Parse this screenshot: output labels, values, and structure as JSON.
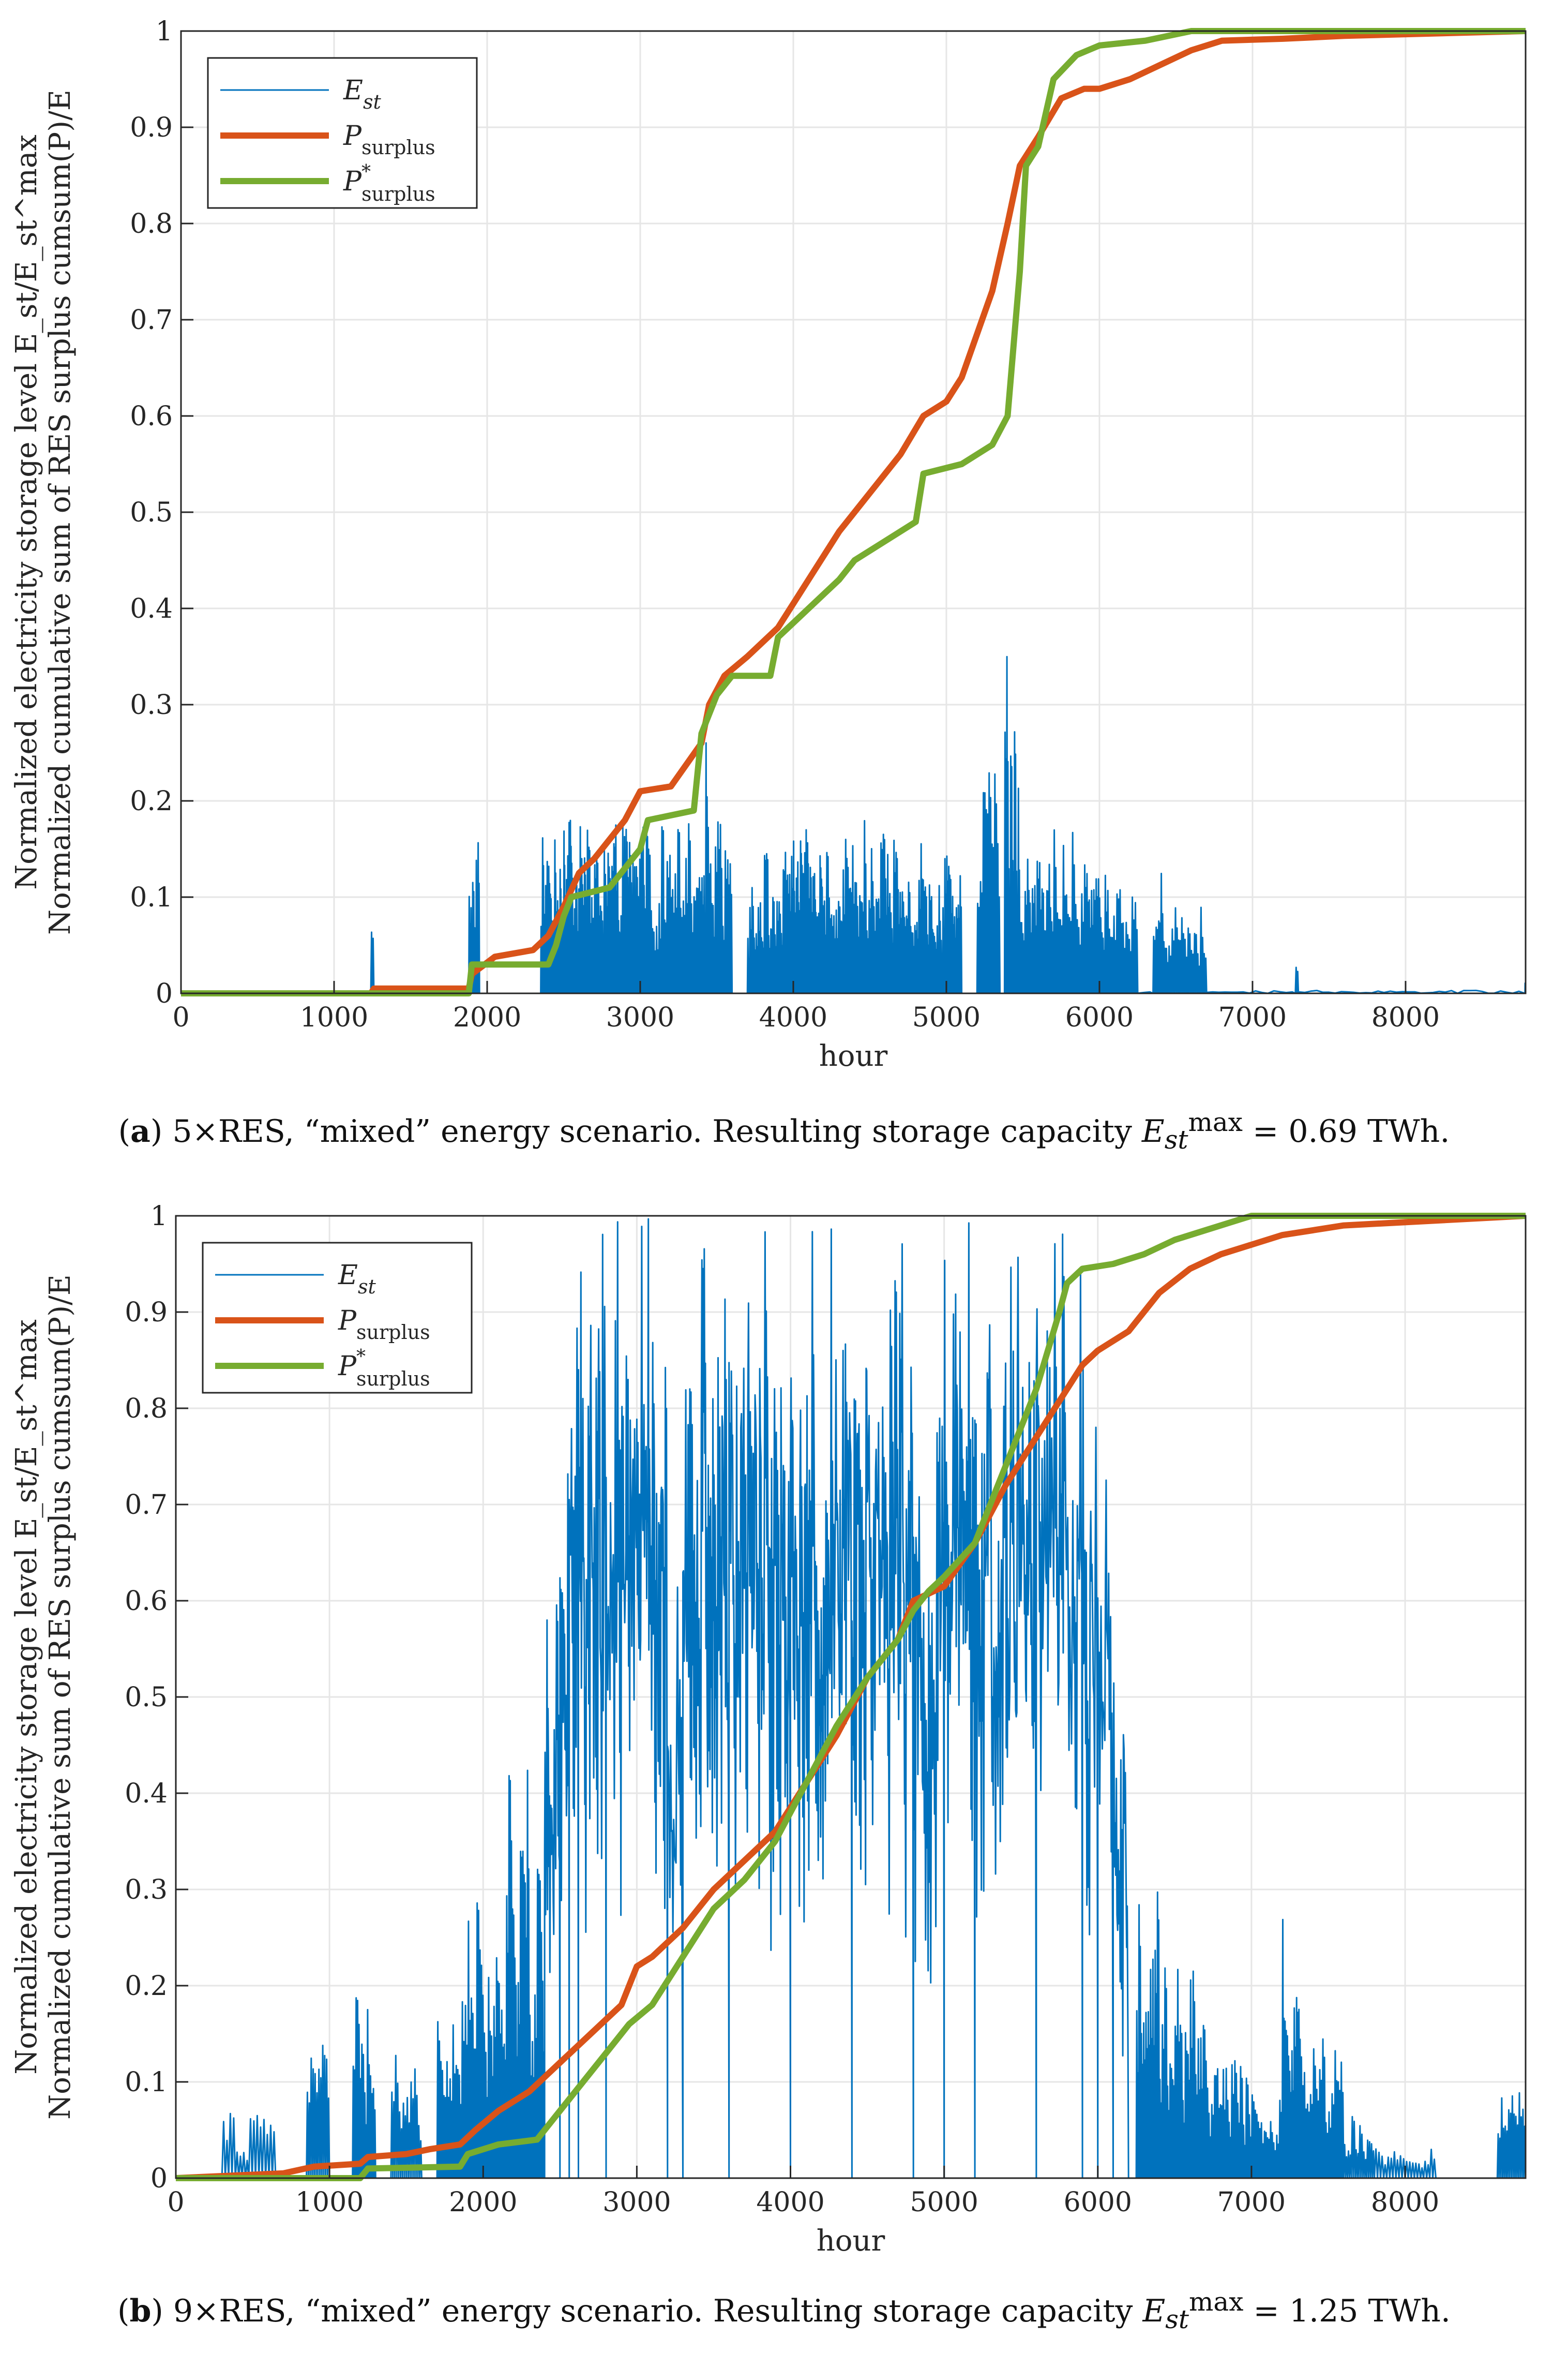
{
  "colors": {
    "E_st": "#0072BD",
    "P_surplus": "#D95319",
    "P_surplus_star": "#77AC30",
    "grid": "#e6e6e6",
    "axis": "#262626"
  },
  "chart_data": [
    {
      "type": "line",
      "xlabel": "hour",
      "ylabel_line1": "Normalized electricity storage level E_st/E_st^max",
      "ylabel_line2": "Normalized cumulative sum of RES surplus cumsum(P)/E",
      "xlim": [
        0,
        8784
      ],
      "ylim": [
        0,
        1
      ],
      "xticks": [
        "0",
        "1000",
        "2000",
        "3000",
        "4000",
        "5000",
        "6000",
        "7000",
        "8000"
      ],
      "yticks": [
        "0",
        "0.1",
        "0.2",
        "0.3",
        "0.4",
        "0.5",
        "0.6",
        "0.7",
        "0.8",
        "0.9",
        "1"
      ],
      "grid": true,
      "legend_position": "top-left",
      "series": [
        {
          "name": "E_st",
          "style": "spiky",
          "y_baseline_noise": 0.003,
          "segments": [
            [
              1240,
              1260,
              0.078,
              1
            ],
            [
              1880,
              1950,
              0.175,
              6
            ],
            [
              2350,
              2450,
              0.175,
              10
            ],
            [
              2450,
              2550,
              0.18,
              12
            ],
            [
              2550,
              2700,
              0.175,
              16
            ],
            [
              2700,
              2850,
              0.175,
              12
            ],
            [
              2850,
              3050,
              0.18,
              18
            ],
            [
              3050,
              3400,
              0.18,
              20
            ],
            [
              3400,
              3440,
              0.29,
              3
            ],
            [
              3440,
              3600,
              0.18,
              10
            ],
            [
              3700,
              4000,
              0.15,
              22
            ],
            [
              4000,
              4200,
              0.17,
              22
            ],
            [
              4200,
              4600,
              0.18,
              26
            ],
            [
              4600,
              4900,
              0.16,
              22
            ],
            [
              4900,
              5100,
              0.15,
              16
            ],
            [
              5200,
              5350,
              0.23,
              8
            ],
            [
              5380,
              5480,
              0.35,
              8
            ],
            [
              5480,
              5700,
              0.17,
              14
            ],
            [
              5700,
              5900,
              0.17,
              10
            ],
            [
              5900,
              6050,
              0.14,
              10
            ],
            [
              6050,
              6250,
              0.11,
              10
            ],
            [
              6350,
              6450,
              0.13,
              6
            ],
            [
              6450,
              6700,
              0.09,
              12
            ],
            [
              7280,
              7300,
              0.07,
              1
            ],
            [
              8780,
              8784,
              0.015,
              1
            ]
          ]
        },
        {
          "name": "P_surplus",
          "points": [
            [
              0,
              0
            ],
            [
              1240,
              0
            ],
            [
              1260,
              0.005
            ],
            [
              1880,
              0.005
            ],
            [
              1900,
              0.02
            ],
            [
              2050,
              0.038
            ],
            [
              2300,
              0.045
            ],
            [
              2400,
              0.06
            ],
            [
              2500,
              0.09
            ],
            [
              2600,
              0.125
            ],
            [
              2700,
              0.14
            ],
            [
              2900,
              0.18
            ],
            [
              3000,
              0.21
            ],
            [
              3200,
              0.215
            ],
            [
              3400,
              0.26
            ],
            [
              3450,
              0.3
            ],
            [
              3550,
              0.33
            ],
            [
              3700,
              0.35
            ],
            [
              3900,
              0.38
            ],
            [
              4100,
              0.43
            ],
            [
              4300,
              0.48
            ],
            [
              4500,
              0.52
            ],
            [
              4700,
              0.56
            ],
            [
              4850,
              0.6
            ],
            [
              5000,
              0.615
            ],
            [
              5100,
              0.64
            ],
            [
              5300,
              0.73
            ],
            [
              5400,
              0.8
            ],
            [
              5480,
              0.86
            ],
            [
              5600,
              0.89
            ],
            [
              5750,
              0.93
            ],
            [
              5900,
              0.94
            ],
            [
              6000,
              0.94
            ],
            [
              6200,
              0.95
            ],
            [
              6400,
              0.965
            ],
            [
              6600,
              0.98
            ],
            [
              6800,
              0.99
            ],
            [
              7200,
              0.992
            ],
            [
              7600,
              0.995
            ],
            [
              8784,
              1.0
            ]
          ]
        },
        {
          "name": "P_surplus_star",
          "points": [
            [
              0,
              0
            ],
            [
              1880,
              0
            ],
            [
              1900,
              0.03
            ],
            [
              2400,
              0.03
            ],
            [
              2450,
              0.05
            ],
            [
              2500,
              0.08
            ],
            [
              2550,
              0.1
            ],
            [
              2800,
              0.11
            ],
            [
              2900,
              0.13
            ],
            [
              3000,
              0.15
            ],
            [
              3050,
              0.18
            ],
            [
              3350,
              0.19
            ],
            [
              3400,
              0.27
            ],
            [
              3500,
              0.31
            ],
            [
              3600,
              0.33
            ],
            [
              3850,
              0.33
            ],
            [
              3900,
              0.37
            ],
            [
              4100,
              0.4
            ],
            [
              4300,
              0.43
            ],
            [
              4400,
              0.45
            ],
            [
              4600,
              0.47
            ],
            [
              4800,
              0.49
            ],
            [
              4850,
              0.54
            ],
            [
              5100,
              0.55
            ],
            [
              5300,
              0.57
            ],
            [
              5400,
              0.6
            ],
            [
              5480,
              0.75
            ],
            [
              5520,
              0.86
            ],
            [
              5600,
              0.88
            ],
            [
              5700,
              0.95
            ],
            [
              5850,
              0.975
            ],
            [
              6000,
              0.985
            ],
            [
              6300,
              0.99
            ],
            [
              6600,
              1.0
            ],
            [
              8784,
              1.0
            ]
          ]
        }
      ]
    },
    {
      "type": "line",
      "xlabel": "hour",
      "ylabel_line1": "Normalized electricity storage level E_st/E_st^max",
      "ylabel_line2": "Normalized cumulative sum of RES surplus cumsum(P)/E",
      "xlim": [
        0,
        8784
      ],
      "ylim": [
        0,
        1
      ],
      "xticks": [
        "0",
        "1000",
        "2000",
        "3000",
        "4000",
        "5000",
        "6000",
        "7000",
        "8000"
      ],
      "yticks": [
        "0",
        "0.1",
        "0.2",
        "0.3",
        "0.4",
        "0.5",
        "0.6",
        "0.7",
        "0.8",
        "0.9",
        "1"
      ],
      "grid": true,
      "legend_position": "top-left",
      "series": [
        {
          "name": "E_st",
          "style": "spiky",
          "y_baseline_noise": 0.003,
          "segments": [
            [
              300,
              650,
              0.07,
              8
            ],
            [
              850,
              1000,
              0.17,
              6
            ],
            [
              1150,
              1300,
              0.19,
              8
            ],
            [
              1400,
              1600,
              0.13,
              8
            ],
            [
              1700,
              1900,
              0.2,
              10
            ],
            [
              1900,
              2050,
              0.31,
              8
            ],
            [
              2050,
              2150,
              0.28,
              6
            ],
            [
              2150,
              2300,
              0.44,
              10
            ],
            [
              2300,
              2400,
              0.37,
              6
            ],
            [
              2400,
              2500,
              0.6,
              8
            ],
            [
              2500,
              2560,
              0.75,
              5
            ],
            [
              2560,
              2620,
              1.0,
              5
            ],
            [
              2620,
              2800,
              1.0,
              14
            ],
            [
              2800,
              3200,
              1.0,
              28
            ],
            [
              3200,
              3300,
              0.62,
              5
            ],
            [
              3300,
              3600,
              1.0,
              20
            ],
            [
              3600,
              4000,
              1.0,
              26
            ],
            [
              4000,
              4400,
              1.0,
              26
            ],
            [
              4400,
              4800,
              1.0,
              26
            ],
            [
              4800,
              5000,
              0.8,
              12
            ],
            [
              5000,
              5200,
              1.0,
              14
            ],
            [
              5200,
              5600,
              1.0,
              26
            ],
            [
              5600,
              5900,
              1.0,
              18
            ],
            [
              5900,
              6000,
              0.85,
              6
            ],
            [
              6000,
              6100,
              0.74,
              6
            ],
            [
              6100,
              6200,
              0.55,
              6
            ],
            [
              6250,
              6400,
              0.3,
              10
            ],
            [
              6400,
              6700,
              0.22,
              18
            ],
            [
              6700,
              7000,
              0.13,
              16
            ],
            [
              7000,
              7200,
              0.1,
              10
            ],
            [
              7200,
              7320,
              0.3,
              8
            ],
            [
              7320,
              7600,
              0.15,
              14
            ],
            [
              7600,
              7800,
              0.07,
              8
            ],
            [
              7800,
              8200,
              0.035,
              10
            ],
            [
              8600,
              8784,
              0.09,
              8
            ]
          ]
        },
        {
          "name": "P_surplus",
          "points": [
            [
              0,
              0
            ],
            [
              700,
              0.005
            ],
            [
              900,
              0.012
            ],
            [
              1200,
              0.015
            ],
            [
              1250,
              0.022
            ],
            [
              1500,
              0.025
            ],
            [
              1650,
              0.03
            ],
            [
              1850,
              0.035
            ],
            [
              1950,
              0.05
            ],
            [
              2100,
              0.07
            ],
            [
              2300,
              0.09
            ],
            [
              2500,
              0.12
            ],
            [
              2700,
              0.15
            ],
            [
              2900,
              0.18
            ],
            [
              3000,
              0.22
            ],
            [
              3100,
              0.23
            ],
            [
              3300,
              0.26
            ],
            [
              3500,
              0.3
            ],
            [
              3700,
              0.33
            ],
            [
              3900,
              0.36
            ],
            [
              4100,
              0.41
            ],
            [
              4300,
              0.46
            ],
            [
              4500,
              0.52
            ],
            [
              4700,
              0.56
            ],
            [
              4800,
              0.6
            ],
            [
              5000,
              0.615
            ],
            [
              5200,
              0.66
            ],
            [
              5400,
              0.72
            ],
            [
              5600,
              0.77
            ],
            [
              5800,
              0.82
            ],
            [
              5900,
              0.845
            ],
            [
              6000,
              0.86
            ],
            [
              6200,
              0.88
            ],
            [
              6400,
              0.92
            ],
            [
              6600,
              0.945
            ],
            [
              6800,
              0.96
            ],
            [
              7000,
              0.97
            ],
            [
              7200,
              0.98
            ],
            [
              7400,
              0.985
            ],
            [
              7600,
              0.99
            ],
            [
              8784,
              1.0
            ]
          ]
        },
        {
          "name": "P_surplus_star",
          "points": [
            [
              0,
              0
            ],
            [
              1200,
              0
            ],
            [
              1250,
              0.01
            ],
            [
              1850,
              0.012
            ],
            [
              1900,
              0.025
            ],
            [
              2100,
              0.035
            ],
            [
              2350,
              0.04
            ],
            [
              2450,
              0.06
            ],
            [
              2600,
              0.09
            ],
            [
              2800,
              0.13
            ],
            [
              2950,
              0.16
            ],
            [
              3100,
              0.18
            ],
            [
              3300,
              0.23
            ],
            [
              3500,
              0.28
            ],
            [
              3700,
              0.31
            ],
            [
              3900,
              0.35
            ],
            [
              4100,
              0.41
            ],
            [
              4300,
              0.47
            ],
            [
              4500,
              0.52
            ],
            [
              4700,
              0.56
            ],
            [
              4800,
              0.59
            ],
            [
              4900,
              0.61
            ],
            [
              5000,
              0.625
            ],
            [
              5200,
              0.66
            ],
            [
              5400,
              0.74
            ],
            [
              5600,
              0.82
            ],
            [
              5750,
              0.9
            ],
            [
              5800,
              0.93
            ],
            [
              5900,
              0.945
            ],
            [
              6100,
              0.95
            ],
            [
              6300,
              0.96
            ],
            [
              6500,
              0.975
            ],
            [
              6700,
              0.985
            ],
            [
              6900,
              0.995
            ],
            [
              7000,
              1.0
            ],
            [
              8784,
              1.0
            ]
          ]
        }
      ]
    }
  ],
  "legend": {
    "e_st": "E",
    "e_st_sub": "st",
    "p_surplus": "P",
    "p_surplus_sub": "surplus",
    "p_surplus_star": "P",
    "p_surplus_star_sup": "*",
    "p_surplus_star_sub": "surplus"
  },
  "captions": {
    "a": {
      "label": "a",
      "text": "5×RES, “mixed” energy scenario. Resulting storage capacity ",
      "sym": "E",
      "sym_sub": "st",
      "sym_sup": "max",
      "value": " = 0.69 TWh."
    },
    "b": {
      "label": "b",
      "text": "9×RES, “mixed” energy scenario. Resulting storage capacity ",
      "sym": "E",
      "sym_sub": "st",
      "sym_sup": "max",
      "value": " = 1.25 TWh."
    }
  }
}
